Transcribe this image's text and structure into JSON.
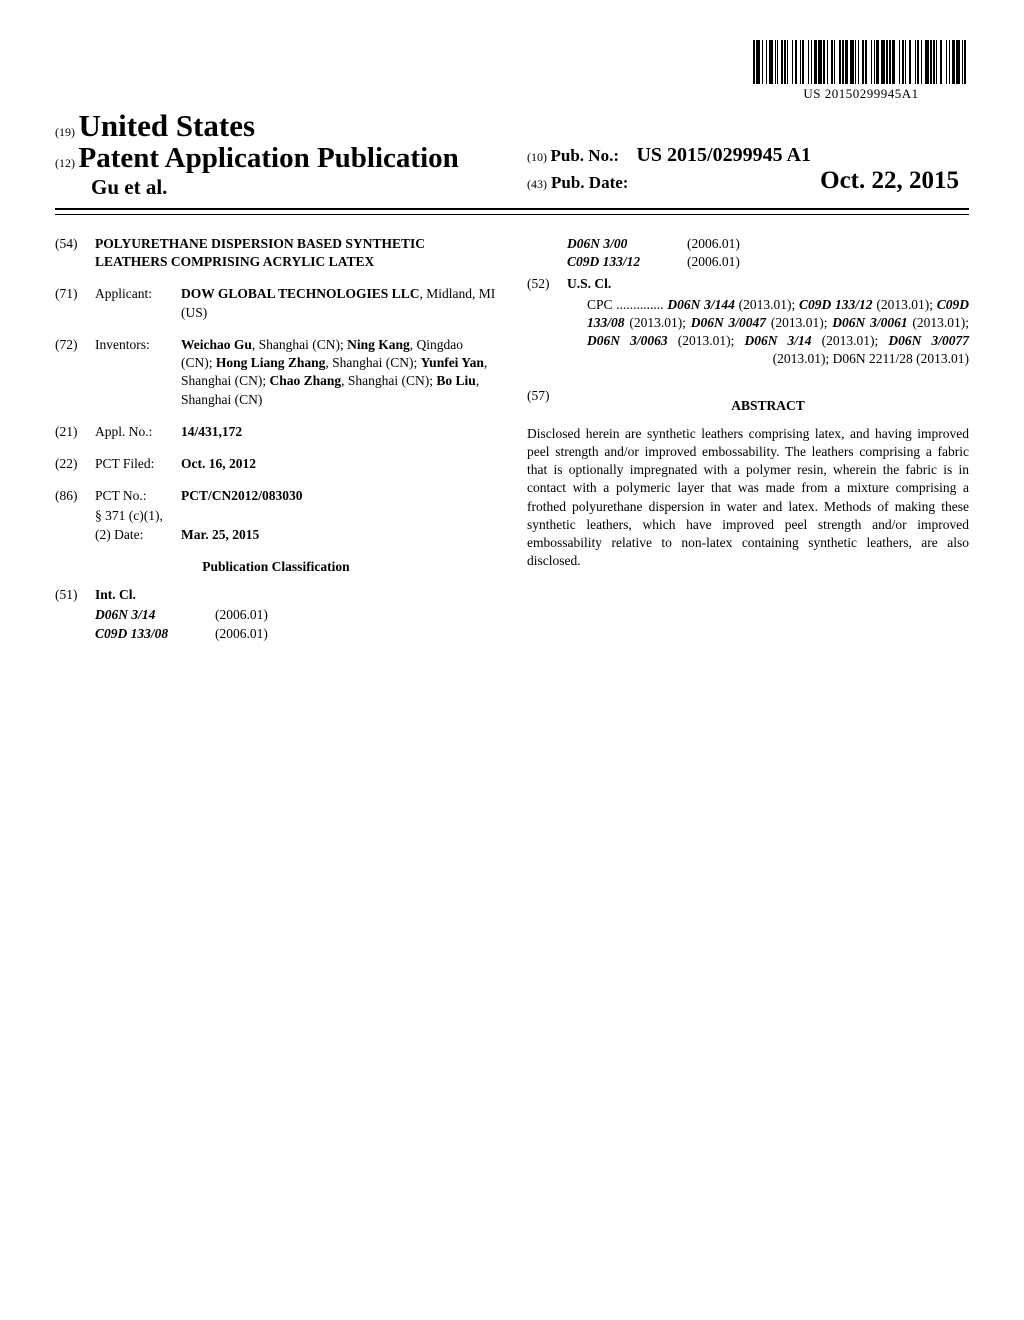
{
  "barcode_number": "US 20150299945A1",
  "header": {
    "inid_19": "(19)",
    "country": "United States",
    "inid_12": "(12)",
    "doctype": "Patent Application Publication",
    "authors": "Gu et al.",
    "inid_10": "(10)",
    "pubno_label": "Pub. No.:",
    "pubno_value": "US 2015/0299945 A1",
    "inid_43": "(43)",
    "pubdate_label": "Pub. Date:",
    "pubdate_value": "Oct. 22, 2015"
  },
  "left": {
    "54": {
      "code": "(54)",
      "title": "POLYURETHANE DISPERSION BASED SYNTHETIC LEATHERS COMPRISING ACRYLIC LATEX"
    },
    "71": {
      "code": "(71)",
      "label": "Applicant:",
      "value": "DOW GLOBAL TECHNOLOGIES LLC",
      "location": ", Midland, MI (US)"
    },
    "72": {
      "code": "(72)",
      "label": "Inventors:",
      "value": "Weichao Gu, Shanghai (CN); Ning Kang, Qingdao (CN); Hong Liang Zhang, Shanghai (CN); Yunfei Yan, Shanghai (CN); Chao Zhang, Shanghai (CN); Bo Liu, Shanghai (CN)",
      "v1": "Weichao Gu",
      "v1l": ", Shanghai (CN); ",
      "v2": "Ning Kang",
      "v2l": ", Qingdao (CN); ",
      "v3": "Hong Liang Zhang",
      "v3l": ", Shanghai (CN); ",
      "v4": "Yunfei Yan",
      "v4l": ", Shanghai (CN); ",
      "v5": "Chao Zhang",
      "v5l": ", Shanghai (CN); ",
      "v6": "Bo Liu",
      "v6l": ", Shanghai (CN)"
    },
    "21": {
      "code": "(21)",
      "label": "Appl. No.:",
      "value": "14/431,172"
    },
    "22": {
      "code": "(22)",
      "label": "PCT Filed:",
      "value": "Oct. 16, 2012"
    },
    "86": {
      "code": "(86)",
      "label": "PCT No.:",
      "value": "PCT/CN2012/083030",
      "sub1_label": "§ 371 (c)(1),",
      "sub2_label": "(2) Date:",
      "sub2_value": "Mar. 25, 2015"
    },
    "pubclass": "Publication Classification",
    "51": {
      "code": "(51)",
      "label": "Int. Cl.",
      "rows": [
        {
          "code": "D06N 3/14",
          "date": "(2006.01)"
        },
        {
          "code": "C09D 133/08",
          "date": "(2006.01)"
        }
      ]
    }
  },
  "right": {
    "cl_rows": [
      {
        "code": "D06N 3/00",
        "date": "(2006.01)"
      },
      {
        "code": "C09D 133/12",
        "date": "(2006.01)"
      }
    ],
    "52": {
      "code": "(52)",
      "label": "U.S. Cl."
    },
    "cpc_prefix": "CPC ..............",
    "cpc": "D06N 3/144 (2013.01); C09D 133/12 (2013.01); C09D 133/08 (2013.01); D06N 3/0047 (2013.01); D06N 3/0061 (2013.01); D06N 3/0063 (2013.01); D06N 3/14 (2013.01); D06N 3/0077 (2013.01); D06N 2211/28 (2013.01)",
    "cpc_parts": [
      {
        "t": "D06N 3/144",
        "i": true
      },
      {
        "t": " (2013.01); "
      },
      {
        "t": "C09D 133/12",
        "i": true
      },
      {
        "t": " (2013.01); "
      },
      {
        "t": "C09D 133/08",
        "i": true
      },
      {
        "t": " (2013.01); "
      },
      {
        "t": "D06N 3/0047",
        "i": true
      },
      {
        "t": " (2013.01); "
      },
      {
        "t": "D06N 3/0061",
        "i": true
      },
      {
        "t": " (2013.01); "
      },
      {
        "t": "D06N 3/0063",
        "i": true
      },
      {
        "t": " (2013.01); "
      },
      {
        "t": "D06N 3/14",
        "i": true
      },
      {
        "t": " (2013.01); "
      },
      {
        "t": "D06N 3/0077",
        "i": true
      },
      {
        "t": " (2013.01); "
      },
      {
        "t": "D06N 2211/28",
        "i": false
      },
      {
        "t": " (2013.01)"
      }
    ],
    "57": {
      "code": "(57)",
      "title": "ABSTRACT"
    },
    "abstract": "Disclosed herein are synthetic leathers comprising latex, and having improved peel strength and/or improved embossability. The leathers comprising a fabric that is optionally impregnated with a polymer resin, wherein the fabric is in contact with a polymeric layer that was made from a mixture comprising a frothed polyurethane dispersion in water and latex. Methods of making these synthetic leathers, which have improved peel strength and/or improved embossability relative to non-latex containing synthetic leathers, are also disclosed."
  }
}
